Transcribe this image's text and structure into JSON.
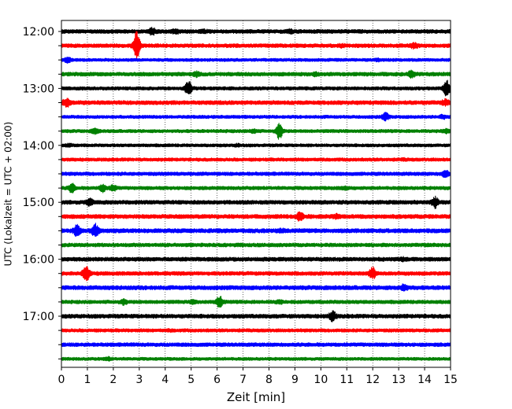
{
  "chart_data": {
    "type": "line",
    "title": "",
    "xlabel": "Zeit  [min]",
    "ylabel": "UTC (Lokalzeit = UTC + 02:00)",
    "xlim": [
      0,
      15
    ],
    "x_ticks": [
      "0",
      "1",
      "2",
      "3",
      "4",
      "5",
      "6",
      "7",
      "8",
      "9",
      "10",
      "11",
      "12",
      "13",
      "14",
      "15"
    ],
    "y_tick_labels": [
      {
        "row": 0,
        "label": "12:00"
      },
      {
        "row": 4,
        "label": "13:00"
      },
      {
        "row": 8,
        "label": "14:00"
      },
      {
        "row": 12,
        "label": "15:00"
      },
      {
        "row": 16,
        "label": "16:00"
      },
      {
        "row": 20,
        "label": "17:00"
      }
    ],
    "grid": "vertical-dotted",
    "trace_interval_min": 15,
    "start_time": "12:00",
    "colors": [
      "#000000",
      "#ff0000",
      "#0000ff",
      "#008000"
    ],
    "series": [
      {
        "start": "12:00",
        "color": "#000000",
        "events": [
          {
            "t": 3.5,
            "amp": 1.6
          },
          {
            "t": 4.4,
            "amp": 1.4
          },
          {
            "t": 5.5,
            "amp": 1.2
          },
          {
            "t": 8.8,
            "amp": 1.3
          }
        ]
      },
      {
        "start": "12:15",
        "color": "#ff0000",
        "events": [
          {
            "t": 2.9,
            "amp": 4.0
          },
          {
            "t": 10.8,
            "amp": 1.2
          },
          {
            "t": 13.6,
            "amp": 1.5
          }
        ]
      },
      {
        "start": "12:30",
        "color": "#0000ff",
        "events": [
          {
            "t": 0.25,
            "amp": 1.6
          },
          {
            "t": 12.2,
            "amp": 1.2
          }
        ]
      },
      {
        "start": "12:45",
        "color": "#008000",
        "events": [
          {
            "t": 5.2,
            "amp": 1.4
          },
          {
            "t": 9.8,
            "amp": 1.2
          },
          {
            "t": 13.5,
            "amp": 1.6
          }
        ]
      },
      {
        "start": "13:00",
        "color": "#000000",
        "events": [
          {
            "t": 4.9,
            "amp": 2.6
          },
          {
            "t": 14.85,
            "amp": 2.8
          }
        ]
      },
      {
        "start": "13:15",
        "color": "#ff0000",
        "events": [
          {
            "t": 0.2,
            "amp": 1.8
          },
          {
            "t": 14.8,
            "amp": 1.5
          }
        ]
      },
      {
        "start": "13:30",
        "color": "#0000ff",
        "events": [
          {
            "t": 12.5,
            "amp": 1.9
          },
          {
            "t": 14.7,
            "amp": 1.4
          }
        ]
      },
      {
        "start": "13:45",
        "color": "#008000",
        "events": [
          {
            "t": 1.3,
            "amp": 1.6
          },
          {
            "t": 7.4,
            "amp": 1.4
          },
          {
            "t": 8.4,
            "amp": 3.0
          },
          {
            "t": 14.8,
            "amp": 1.4
          }
        ]
      },
      {
        "start": "14:00",
        "color": "#000000",
        "events": [
          {
            "t": 0.3,
            "amp": 1.3
          },
          {
            "t": 6.8,
            "amp": 1.2
          }
        ]
      },
      {
        "start": "14:15",
        "color": "#ff0000",
        "events": [
          {
            "t": 13.2,
            "amp": 1.1
          }
        ]
      },
      {
        "start": "14:30",
        "color": "#0000ff",
        "events": [
          {
            "t": 14.8,
            "amp": 1.8
          }
        ]
      },
      {
        "start": "14:45",
        "color": "#008000",
        "events": [
          {
            "t": 0.4,
            "amp": 2.0
          },
          {
            "t": 1.6,
            "amp": 1.8
          },
          {
            "t": 2.0,
            "amp": 1.6
          },
          {
            "t": 10.9,
            "amp": 1.3
          }
        ]
      },
      {
        "start": "15:00",
        "color": "#000000",
        "events": [
          {
            "t": 1.1,
            "amp": 1.6
          },
          {
            "t": 14.4,
            "amp": 2.0
          }
        ]
      },
      {
        "start": "15:15",
        "color": "#ff0000",
        "events": [
          {
            "t": 9.2,
            "amp": 1.8
          },
          {
            "t": 10.6,
            "amp": 1.3
          }
        ]
      },
      {
        "start": "15:30",
        "color": "#0000ff",
        "events": [
          {
            "t": 0.6,
            "amp": 2.0
          },
          {
            "t": 1.3,
            "amp": 2.2
          },
          {
            "t": 8.5,
            "amp": 1.2
          }
        ]
      },
      {
        "start": "15:45",
        "color": "#008000",
        "events": []
      },
      {
        "start": "16:00",
        "color": "#000000",
        "events": [
          {
            "t": 13.2,
            "amp": 1.2
          }
        ]
      },
      {
        "start": "16:15",
        "color": "#ff0000",
        "events": [
          {
            "t": 0.95,
            "amp": 2.8
          },
          {
            "t": 12.0,
            "amp": 2.2
          }
        ]
      },
      {
        "start": "16:30",
        "color": "#0000ff",
        "events": [
          {
            "t": 13.2,
            "amp": 1.6
          }
        ]
      },
      {
        "start": "16:45",
        "color": "#008000",
        "events": [
          {
            "t": 2.4,
            "amp": 1.5
          },
          {
            "t": 5.1,
            "amp": 1.3
          },
          {
            "t": 6.1,
            "amp": 2.2
          },
          {
            "t": 8.4,
            "amp": 1.3
          }
        ]
      },
      {
        "start": "17:00",
        "color": "#000000",
        "events": [
          {
            "t": 10.45,
            "amp": 2.0
          }
        ]
      },
      {
        "start": "17:15",
        "color": "#ff0000",
        "events": [
          {
            "t": 4.2,
            "amp": 1.1
          }
        ]
      },
      {
        "start": "17:30",
        "color": "#0000ff",
        "events": []
      },
      {
        "start": "17:45",
        "color": "#008000",
        "events": [
          {
            "t": 1.8,
            "amp": 1.3
          }
        ]
      }
    ]
  }
}
